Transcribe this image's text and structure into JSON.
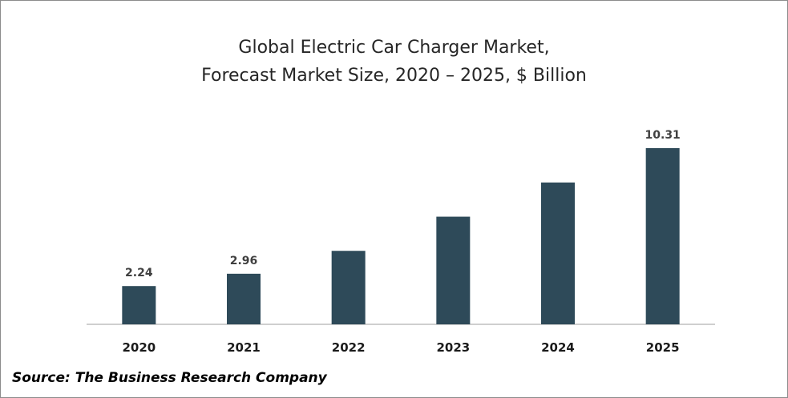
{
  "chart_data": {
    "type": "bar",
    "title_line1": "Global Electric Car Charger Market,",
    "title_line2": "Forecast Market Size, 2020 – 2025, $ Billion",
    "categories": [
      "2020",
      "2021",
      "2022",
      "2023",
      "2024",
      "2025"
    ],
    "values": [
      2.24,
      2.96,
      4.3,
      6.3,
      8.3,
      10.31
    ],
    "data_labels": [
      "2.24",
      "2.96",
      "",
      "",
      "",
      "10.31"
    ],
    "xlabel": "",
    "ylabel": "",
    "ylim": [
      0,
      12
    ],
    "grid": false,
    "bar_color": "#2e4a59",
    "axis_color": "#bfbfbf"
  },
  "source": "Source: The Business Research Company"
}
